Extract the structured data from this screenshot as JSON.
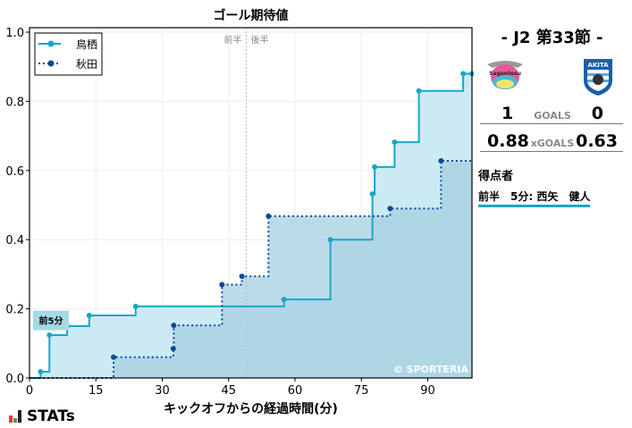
{
  "chart_data": {
    "type": "line",
    "step": true,
    "title": "ゴール期待値",
    "xlabel": "キックオフからの経過時間(分)",
    "ylabel": "",
    "xlim": [
      0,
      100
    ],
    "ylim": [
      0,
      1.0
    ],
    "xticks": [
      0,
      15,
      30,
      45,
      60,
      75,
      90
    ],
    "yticks": [
      0.0,
      0.2,
      0.4,
      0.6,
      0.8,
      1.0
    ],
    "grid": true,
    "legend": "top-left",
    "halftime": {
      "x": 49,
      "labels": [
        "前半",
        "後半"
      ]
    },
    "annotation": {
      "x": 5,
      "label": "前5分"
    },
    "watermark": "© SPORTERIA",
    "series": [
      {
        "name": "鳥栖",
        "color": "#1aa6c9",
        "fill": "#cbeaf3",
        "style": "solid",
        "x": [
          0,
          2.5,
          4.5,
          8.5,
          13.5,
          24,
          57.5,
          68,
          77.5,
          78,
          82.5,
          88,
          98,
          100
        ],
        "y": [
          0,
          0.018,
          0.124,
          0.15,
          0.181,
          0.207,
          0.227,
          0.4,
          0.532,
          0.61,
          0.682,
          0.83,
          0.88,
          0.88
        ]
      },
      {
        "name": "秋田",
        "color": "#0a4a9a",
        "fill": "#a6cfe0",
        "style": "dotted",
        "x": [
          0,
          19,
          32.5,
          32.6,
          43.5,
          48,
          54,
          81.5,
          93,
          100
        ],
        "y": [
          0,
          0.06,
          0.085,
          0.152,
          0.27,
          0.294,
          0.468,
          0.49,
          0.628,
          0.628
        ]
      }
    ]
  },
  "match": {
    "round": "-  J2 第33節  -",
    "home_goals": "1",
    "away_goals": "0",
    "goals_label": "GOALS",
    "home_xg": "0.88",
    "away_xg": "0.63",
    "xg_label": "xGOALS",
    "home_logo_text": "Sagantosu",
    "away_logo_text": "AKITA"
  },
  "scorers": {
    "title": "得点者",
    "items": [
      {
        "text": "前半　5分: 西矢　健人"
      }
    ]
  },
  "brand": "STATs"
}
